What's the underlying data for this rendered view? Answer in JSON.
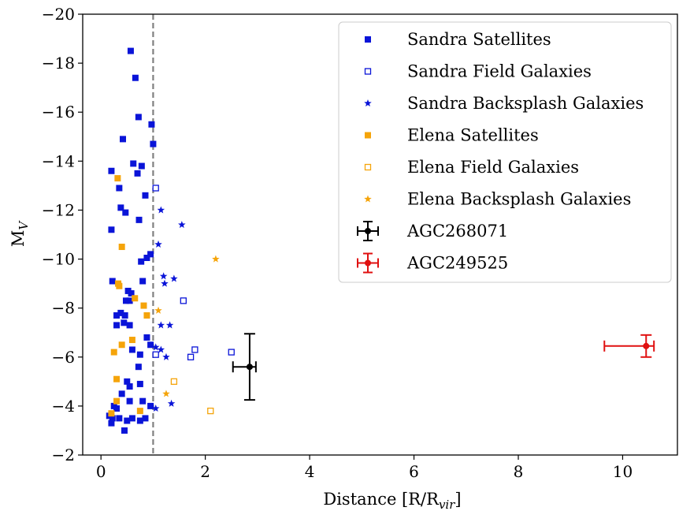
{
  "chart_data": {
    "type": "scatter",
    "xlabel": "Distance [R/R",
    "xlabel_sub": "vir",
    "xlabel_end": "]",
    "ylabel": "M",
    "ylabel_sub": "V",
    "xlim": [
      -0.35,
      11.05
    ],
    "ylim": [
      -2,
      -20
    ],
    "y_inverted": true,
    "xticks": [
      0,
      2,
      4,
      6,
      8,
      10
    ],
    "yticks": [
      -20,
      -18,
      -16,
      -14,
      -12,
      -10,
      -8,
      -6,
      -4,
      -2
    ],
    "xtick_labels": [
      "0",
      "2",
      "4",
      "6",
      "8",
      "10"
    ],
    "ytick_labels": [
      "−20",
      "−18",
      "−16",
      "−14",
      "−12",
      "−10",
      "−8",
      "−6",
      "−4",
      "−2"
    ],
    "grid": false,
    "legend_position": "top-right",
    "reference_line": {
      "x": 1.0,
      "style": "dashed",
      "color": "#808080"
    },
    "series": [
      {
        "name": "Sandra Satellites",
        "marker": "square-filled",
        "color": "#0a14d8",
        "points": [
          [
            0.57,
            -18.5
          ],
          [
            0.66,
            -17.4
          ],
          [
            0.72,
            -15.8
          ],
          [
            0.97,
            -15.5
          ],
          [
            0.42,
            -14.9
          ],
          [
            1.0,
            -14.7
          ],
          [
            0.62,
            -13.9
          ],
          [
            0.78,
            -13.8
          ],
          [
            0.2,
            -13.6
          ],
          [
            0.7,
            -13.5
          ],
          [
            0.35,
            -12.9
          ],
          [
            0.85,
            -12.6
          ],
          [
            0.38,
            -12.1
          ],
          [
            0.47,
            -11.9
          ],
          [
            0.73,
            -11.6
          ],
          [
            0.2,
            -11.2
          ],
          [
            0.95,
            -10.2
          ],
          [
            0.88,
            -10.05
          ],
          [
            0.77,
            -9.9
          ],
          [
            0.22,
            -9.1
          ],
          [
            0.8,
            -9.1
          ],
          [
            0.52,
            -8.7
          ],
          [
            0.58,
            -8.6
          ],
          [
            0.48,
            -8.3
          ],
          [
            0.55,
            -8.3
          ],
          [
            0.38,
            -7.8
          ],
          [
            0.3,
            -7.7
          ],
          [
            0.46,
            -7.7
          ],
          [
            0.44,
            -7.4
          ],
          [
            0.3,
            -7.3
          ],
          [
            0.55,
            -7.3
          ],
          [
            0.88,
            -6.8
          ],
          [
            0.95,
            -6.5
          ],
          [
            0.6,
            -6.3
          ],
          [
            0.75,
            -6.1
          ],
          [
            0.72,
            -5.6
          ],
          [
            0.5,
            -5.0
          ],
          [
            0.55,
            -4.8
          ],
          [
            0.75,
            -4.9
          ],
          [
            0.4,
            -4.5
          ],
          [
            0.55,
            -4.2
          ],
          [
            0.8,
            -4.2
          ],
          [
            0.25,
            -4.0
          ],
          [
            0.3,
            -3.9
          ],
          [
            0.95,
            -4.0
          ],
          [
            0.16,
            -3.6
          ],
          [
            0.22,
            -3.5
          ],
          [
            0.35,
            -3.5
          ],
          [
            0.5,
            -3.4
          ],
          [
            0.6,
            -3.5
          ],
          [
            0.75,
            -3.4
          ],
          [
            0.85,
            -3.5
          ],
          [
            0.2,
            -3.3
          ],
          [
            0.45,
            -3.0
          ]
        ]
      },
      {
        "name": "Sandra Field Galaxies",
        "marker": "square-open",
        "color": "#0a14d8",
        "points": [
          [
            1.05,
            -12.9
          ],
          [
            1.58,
            -8.3
          ],
          [
            1.05,
            -6.1
          ],
          [
            1.72,
            -6.0
          ],
          [
            1.8,
            -6.3
          ],
          [
            2.5,
            -6.2
          ]
        ]
      },
      {
        "name": "Sandra Backsplash Galaxies",
        "marker": "star",
        "color": "#0a14d8",
        "points": [
          [
            1.15,
            -12.0
          ],
          [
            1.55,
            -11.4
          ],
          [
            1.1,
            -10.6
          ],
          [
            1.2,
            -9.3
          ],
          [
            1.4,
            -9.2
          ],
          [
            1.22,
            -9.0
          ],
          [
            1.15,
            -7.3
          ],
          [
            1.32,
            -7.3
          ],
          [
            1.05,
            -6.4
          ],
          [
            1.15,
            -6.3
          ],
          [
            1.25,
            -6.0
          ],
          [
            1.05,
            -3.9
          ],
          [
            1.35,
            -4.1
          ]
        ]
      },
      {
        "name": "Elena Satellites",
        "marker": "square-filled",
        "color": "#f5a40a",
        "points": [
          [
            0.32,
            -13.3
          ],
          [
            0.4,
            -10.5
          ],
          [
            0.33,
            -9.0
          ],
          [
            0.65,
            -8.4
          ],
          [
            0.35,
            -8.9
          ],
          [
            0.82,
            -8.1
          ],
          [
            0.88,
            -7.7
          ],
          [
            0.6,
            -6.7
          ],
          [
            0.4,
            -6.5
          ],
          [
            0.25,
            -6.2
          ],
          [
            0.3,
            -5.1
          ],
          [
            0.3,
            -4.2
          ],
          [
            0.75,
            -3.8
          ],
          [
            0.2,
            -3.7
          ]
        ]
      },
      {
        "name": "Elena Field Galaxies",
        "marker": "square-open",
        "color": "#f5a40a",
        "points": [
          [
            1.4,
            -5.0
          ],
          [
            2.1,
            -3.8
          ]
        ]
      },
      {
        "name": "Elena Backsplash Galaxies",
        "marker": "star",
        "color": "#f5a40a",
        "points": [
          [
            2.2,
            -10.0
          ],
          [
            1.1,
            -7.9
          ],
          [
            1.25,
            -4.5
          ]
        ]
      },
      {
        "name": "AGC268071",
        "marker": "errorbar",
        "color": "#000000",
        "points": [
          [
            2.85,
            -5.6
          ]
        ],
        "xerr": [
          0.32,
          0.12
        ],
        "yerr": [
          1.35,
          1.35
        ]
      },
      {
        "name": "AGC249525",
        "marker": "errorbar",
        "color": "#e01010",
        "points": [
          [
            10.45,
            -6.45
          ]
        ],
        "xerr": [
          0.8,
          0.15
        ],
        "yerr": [
          0.45,
          0.45
        ]
      }
    ]
  }
}
